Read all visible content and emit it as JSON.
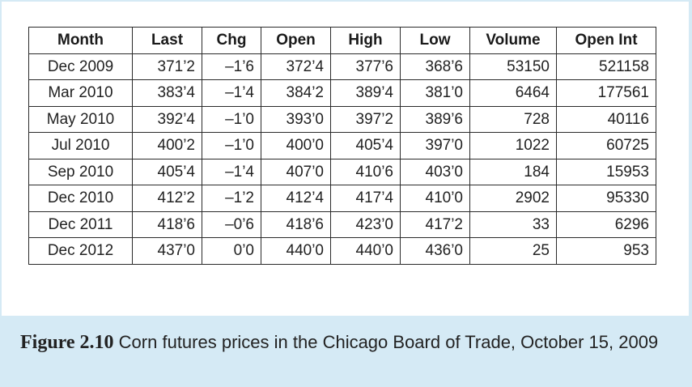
{
  "table": {
    "headers": [
      "Month",
      "Last",
      "Chg",
      "Open",
      "High",
      "Low",
      "Volume",
      "Open Int"
    ],
    "rows": [
      [
        "Dec 2009",
        "371’2",
        "–1’6",
        "372’4",
        "377’6",
        "368’6",
        "53150",
        "521158"
      ],
      [
        "Mar 2010",
        "383’4",
        "–1’4",
        "384’2",
        "389’4",
        "381’0",
        "6464",
        "177561"
      ],
      [
        "May 2010",
        "392’4",
        "–1’0",
        "393’0",
        "397’2",
        "389’6",
        "728",
        "40116"
      ],
      [
        "Jul 2010",
        "400’2",
        "–1’0",
        "400’0",
        "405’4",
        "397’0",
        "1022",
        "60725"
      ],
      [
        "Sep 2010",
        "405’4",
        "–1’4",
        "407’0",
        "410’6",
        "403’0",
        "184",
        "15953"
      ],
      [
        "Dec 2010",
        "412’2",
        "–1’2",
        "412’4",
        "417’4",
        "410’0",
        "2902",
        "95330"
      ],
      [
        "Dec 2011",
        "418’6",
        "–0’6",
        "418’6",
        "423’0",
        "417’2",
        "33",
        "6296"
      ],
      [
        "Dec 2012",
        "437’0",
        "0’0",
        "440’0",
        "440’0",
        "436’0",
        "25",
        "953"
      ]
    ]
  },
  "caption": {
    "label": "Figure 2.10",
    "text": "Corn futures prices in the Chicago Board of Trade, October 15, 2009"
  },
  "colors": {
    "caption_background": "#d5eaf5",
    "panel_background": "#ffffff",
    "table_border": "#2a2a2a",
    "text": "#222222"
  }
}
